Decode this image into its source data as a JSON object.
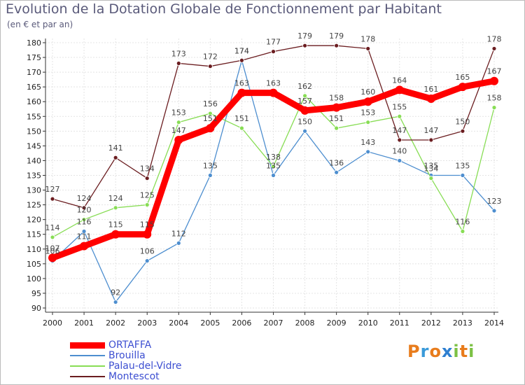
{
  "chart_data": {
    "type": "line",
    "title": "Evolution de la Dotation Globale de Fonctionnement par Habitant",
    "subtitle": "(en € et par an)",
    "xlabel": "",
    "ylabel": "",
    "ylim": [
      90,
      180
    ],
    "ytick_step": 5,
    "grid": true,
    "legend_position": "bottom-left",
    "categories": [
      "2000",
      "2001",
      "2002",
      "2003",
      "2004",
      "2005",
      "2006",
      "2007",
      "2008",
      "2009",
      "2010",
      "2011",
      "2012",
      "2013",
      "2014"
    ],
    "series": [
      {
        "name": "ORTAFFA",
        "color": "#ff0000",
        "values": [
          107,
          111,
          115,
          115,
          147,
          151,
          163,
          163,
          157,
          158,
          160,
          164,
          161,
          165,
          167
        ]
      },
      {
        "name": "Brouilla",
        "color": "#4d8ecf",
        "values": [
          106,
          116,
          92,
          106,
          112,
          135,
          174,
          135,
          150,
          136,
          143,
          140,
          135,
          135,
          123
        ]
      },
      {
        "name": "Palau-del-Vidre",
        "color": "#88dd55",
        "values": [
          114,
          120,
          124,
          125,
          153,
          156,
          151,
          138,
          162,
          151,
          153,
          155,
          134,
          116,
          158
        ]
      },
      {
        "name": "Montescot",
        "color": "#6b1d20",
        "values": [
          127,
          124,
          141,
          134,
          173,
          172,
          174,
          177,
          179,
          179,
          178,
          147,
          147,
          150,
          178
        ]
      }
    ]
  },
  "legend": {
    "items": [
      {
        "label": "ORTAFFA",
        "color": "#ff0000"
      },
      {
        "label": "Brouilla",
        "color": "#4d8ecf"
      },
      {
        "label": "Palau-del-Vidre",
        "color": "#88dd55"
      },
      {
        "label": "Montescot",
        "color": "#6b1d20"
      }
    ]
  },
  "logo": {
    "letters": [
      "P",
      "r",
      "o",
      "x",
      "i",
      "t",
      "i"
    ],
    "colors": [
      "#e87c1c",
      "#3a9ad9",
      "#e87c1c",
      "#2f7fd0",
      "#7cc144",
      "#e87c1c",
      "#7cc144"
    ]
  }
}
